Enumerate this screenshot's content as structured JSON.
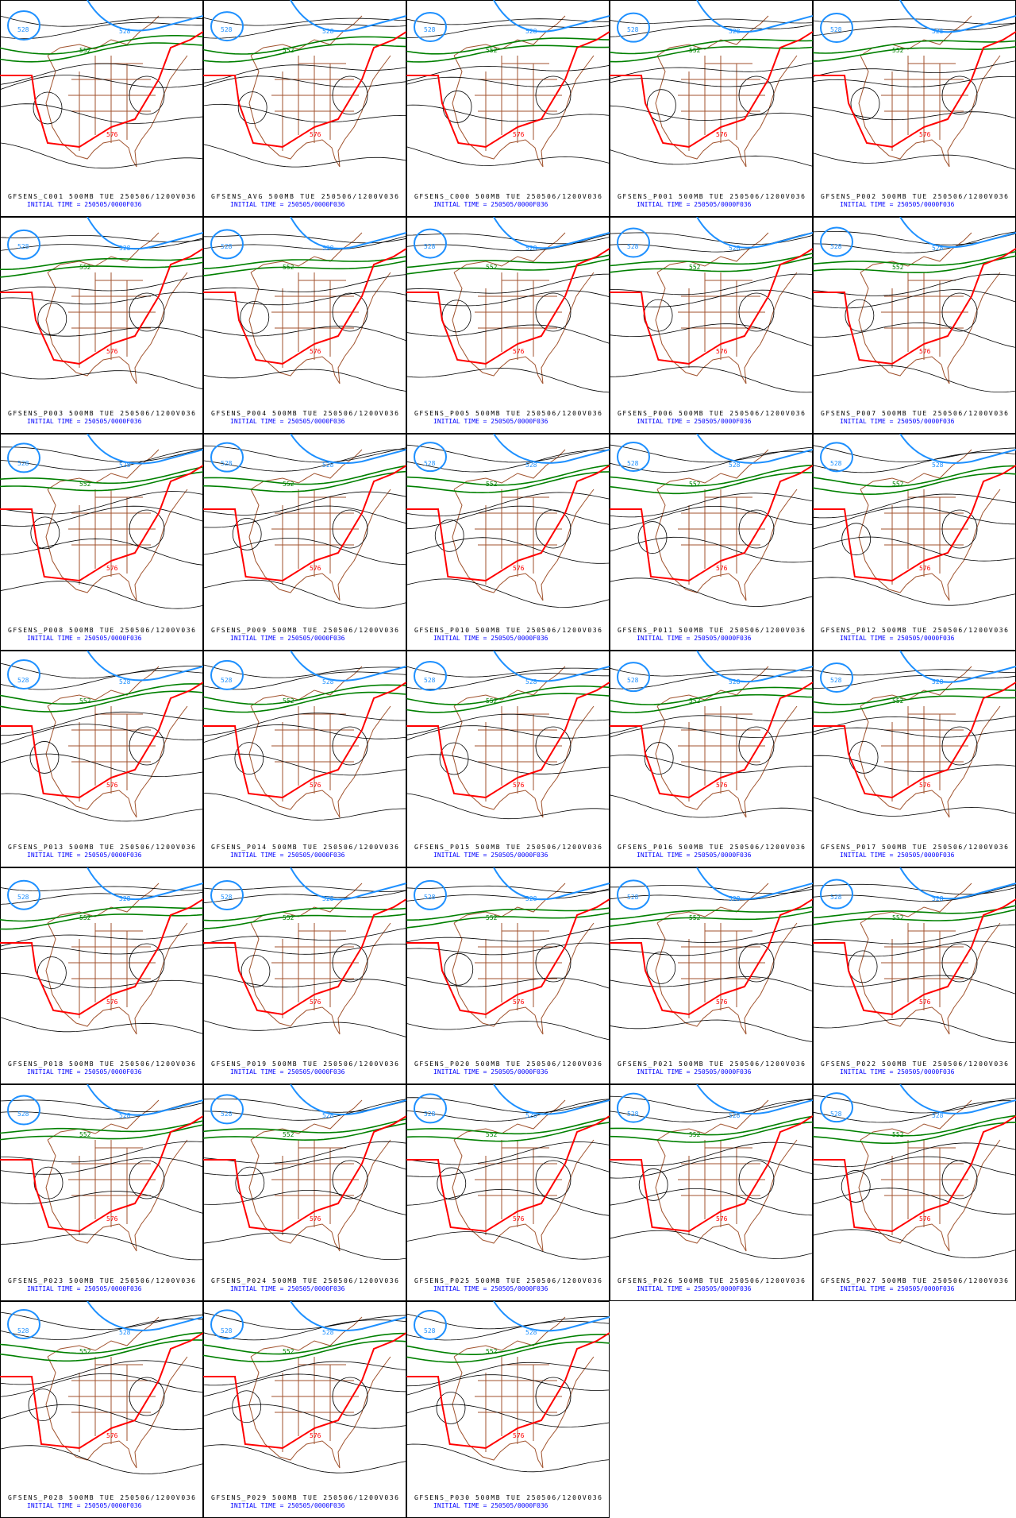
{
  "panels": [
    {
      "title": "GFSENS_C001 500MB TUE 250506/1200V036",
      "init": "INITIAL TIME = 250505/0000F036"
    },
    {
      "title": "GFSENS_AVG 500MB TUE 250506/1200V036",
      "init": "INITIAL TIME = 250505/0000F036"
    },
    {
      "title": "GFSENS_C000 500MB TUE 250506/1200V036",
      "init": "INITIAL TIME = 250505/0000F036"
    },
    {
      "title": "GFSENS_P001 500MB TUE 250506/1200V036",
      "init": "INITIAL TIME = 250505/0000F036"
    },
    {
      "title": "GFSENS_P002 500MB TUE 250506/1200V036",
      "init": "INITIAL TIME = 250505/0000F036"
    },
    {
      "title": "GFSENS_P003 500MB TUE 250506/1200V036",
      "init": "INITIAL TIME = 250505/0000F036"
    },
    {
      "title": "GFSENS_P004 500MB TUE 250506/1200V036",
      "init": "INITIAL TIME = 250505/0000F036"
    },
    {
      "title": "GFSENS_P005 500MB TUE 250506/1200V036",
      "init": "INITIAL TIME = 250505/0000F036"
    },
    {
      "title": "GFSENS_P006 500MB TUE 250506/1200V036",
      "init": "INITIAL TIME = 250505/0000F036"
    },
    {
      "title": "GFSENS_P007 500MB TUE 250506/1200V036",
      "init": "INITIAL TIME = 250505/0000F036"
    },
    {
      "title": "GFSENS_P008 500MB TUE 250506/1200V036",
      "init": "INITIAL TIME = 250505/0000F036"
    },
    {
      "title": "GFSENS_P009 500MB TUE 250506/1200V036",
      "init": "INITIAL TIME = 250505/0000F036"
    },
    {
      "title": "GFSENS_P010 500MB TUE 250506/1200V036",
      "init": "INITIAL TIME = 250505/0000F036"
    },
    {
      "title": "GFSENS_P011 500MB TUE 250506/1200V036",
      "init": "INITIAL TIME = 250505/0000F036"
    },
    {
      "title": "GFSENS_P012 500MB TUE 250506/1200V036",
      "init": "INITIAL TIME = 250505/0000F036"
    },
    {
      "title": "GFSENS_P013 500MB TUE 250506/1200V036",
      "init": "INITIAL TIME = 250505/0000F036"
    },
    {
      "title": "GFSENS_P014 500MB TUE 250506/1200V036",
      "init": "INITIAL TIME = 250505/0000F036"
    },
    {
      "title": "GFSENS_P015 500MB TUE 250506/1200V036",
      "init": "INITIAL TIME = 250505/0000F036"
    },
    {
      "title": "GFSENS_P016 500MB TUE 250506/1200V036",
      "init": "INITIAL TIME = 250505/0000F036"
    },
    {
      "title": "GFSENS_P017 500MB TUE 250506/1200V036",
      "init": "INITIAL TIME = 250505/0000F036"
    },
    {
      "title": "GFSENS_P018 500MB TUE 250506/1200V036",
      "init": "INITIAL TIME = 250505/0000F036"
    },
    {
      "title": "GFSENS_P019 500MB TUE 250506/1200V036",
      "init": "INITIAL TIME = 250505/0000F036"
    },
    {
      "title": "GFSENS_P020 500MB TUE 250506/1200V036",
      "init": "INITIAL TIME = 250505/0000F036"
    },
    {
      "title": "GFSENS_P021 500MB TUE 250506/1200V036",
      "init": "INITIAL TIME = 250505/0000F036"
    },
    {
      "title": "GFSENS_P022 500MB TUE 250506/1200V036",
      "init": "INITIAL TIME = 250505/0000F036"
    },
    {
      "title": "GFSENS_P023 500MB TUE 250506/1200V036",
      "init": "INITIAL TIME = 250505/0000F036"
    },
    {
      "title": "GFSENS_P024 500MB TUE 250506/1200V036",
      "init": "INITIAL TIME = 250505/0000F036"
    },
    {
      "title": "GFSENS_P025 500MB TUE 250506/1200V036",
      "init": "INITIAL TIME = 250505/0000F036"
    },
    {
      "title": "GFSENS_P026 500MB TUE 250506/1200V036",
      "init": "INITIAL TIME = 250505/0000F036"
    },
    {
      "title": "GFSENS_P027 500MB TUE 250506/1200V036",
      "init": "INITIAL TIME = 250505/0000F036"
    },
    {
      "title": "GFSENS_P028 500MB TUE 250506/1200V036",
      "init": "INITIAL TIME = 250505/0000F036"
    },
    {
      "title": "GFSENS_P029 500MB TUE 250506/1200V036",
      "init": "INITIAL TIME = 250505/0000F036"
    },
    {
      "title": "GFSENS_P030 500MB TUE 250506/1200V036",
      "init": "INITIAL TIME = 250505/0000F036"
    }
  ],
  "contour_labels": {
    "blue": "528",
    "green": "552",
    "red": "576"
  }
}
